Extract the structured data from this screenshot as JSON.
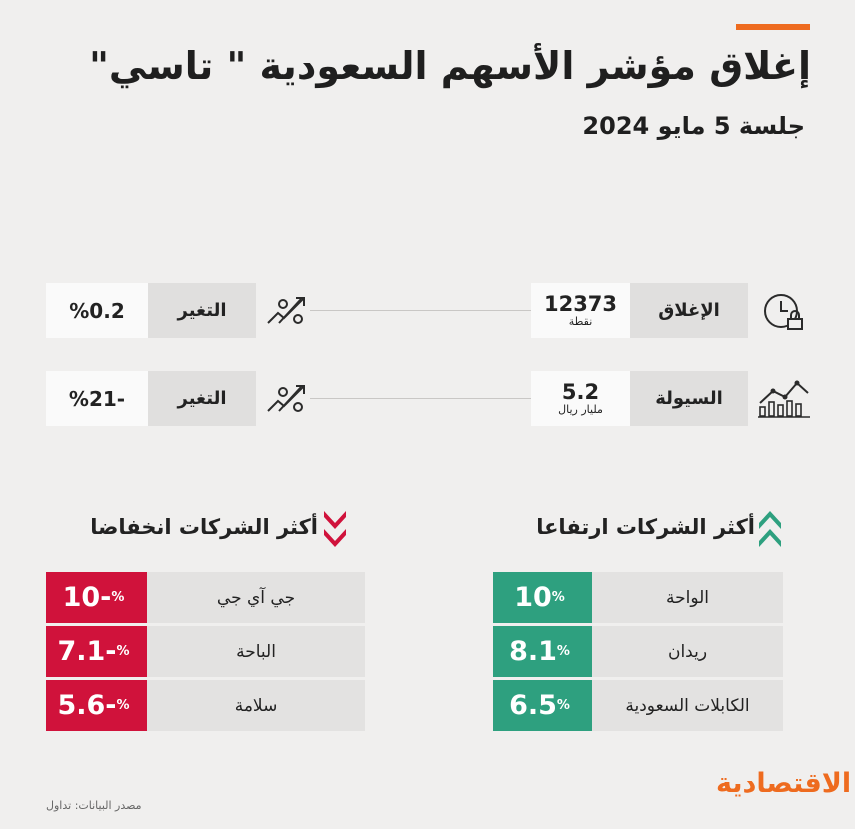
{
  "header": {
    "title": "إغلاق مؤشر الأسهم السعودية \" تاسي\"",
    "subtitle": "جلسة 5 مايو 2024"
  },
  "stats": [
    {
      "label": "الإغلاق",
      "value": "12373",
      "unit": "نقطة",
      "change_label": "التغير",
      "change_value": "%0.2",
      "icon": "clock-lock-icon"
    },
    {
      "label": "السيولة",
      "value": "5.2",
      "unit": "مليار ريال",
      "change_label": "التغير",
      "change_value": "-%21",
      "icon": "bar-chart-icon"
    }
  ],
  "gainers": {
    "title": "أكثر الشركات ارتفاعا",
    "rows": [
      {
        "name": "الواحة",
        "value": "10",
        "unit": "%"
      },
      {
        "name": "ريدان",
        "value": "8.1",
        "unit": "%"
      },
      {
        "name": "الكابلات السعودية",
        "value": "6.5",
        "unit": "%"
      }
    ]
  },
  "losers": {
    "title": "أكثر الشركات انخفاضا",
    "rows": [
      {
        "name": "جي آي جي",
        "value": "10-",
        "unit": "%"
      },
      {
        "name": "الباحة",
        "value": "7.1-",
        "unit": "%"
      },
      {
        "name": "سلامة",
        "value": "5.6-",
        "unit": "%"
      }
    ]
  },
  "footer": {
    "brand": "الاقتصادية",
    "source": "مصدر البيانات: تداول"
  },
  "colors": {
    "accent": "#ee6b1f",
    "up": "#2ea07f",
    "down": "#d0123b"
  }
}
